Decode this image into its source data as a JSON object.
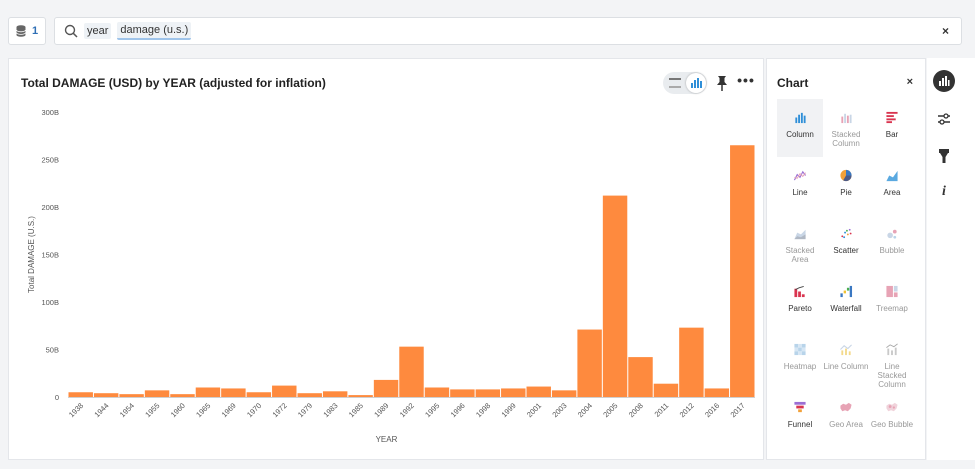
{
  "search": {
    "source_count": "1",
    "tokens": [
      "year",
      "damage (u.s.)"
    ],
    "clear_label": "×"
  },
  "card": {
    "title": "Total DAMAGE (USD) by YEAR (adjusted for inflation)",
    "more_label": "•••"
  },
  "panel": {
    "title": "Chart",
    "close_label": "×",
    "types": [
      {
        "label": "Column",
        "icon": "column-chart-icon",
        "state": "selected"
      },
      {
        "label": "Stacked Column",
        "icon": "stacked-column-chart-icon",
        "state": "disabled"
      },
      {
        "label": "Bar",
        "icon": "bar-chart-icon",
        "state": "enabled"
      },
      {
        "label": "Line",
        "icon": "line-chart-icon",
        "state": "enabled"
      },
      {
        "label": "Pie",
        "icon": "pie-chart-icon",
        "state": "enabled"
      },
      {
        "label": "Area",
        "icon": "area-chart-icon",
        "state": "enabled"
      },
      {
        "label": "Stacked Area",
        "icon": "stacked-area-chart-icon",
        "state": "disabled"
      },
      {
        "label": "Scatter",
        "icon": "scatter-chart-icon",
        "state": "enabled"
      },
      {
        "label": "Bubble",
        "icon": "bubble-chart-icon",
        "state": "disabled"
      },
      {
        "label": "Pareto",
        "icon": "pareto-chart-icon",
        "state": "enabled"
      },
      {
        "label": "Waterfall",
        "icon": "waterfall-chart-icon",
        "state": "enabled"
      },
      {
        "label": "Treemap",
        "icon": "treemap-chart-icon",
        "state": "disabled"
      },
      {
        "label": "Heatmap",
        "icon": "heatmap-chart-icon",
        "state": "disabled"
      },
      {
        "label": "Line Column",
        "icon": "line-column-chart-icon",
        "state": "disabled"
      },
      {
        "label": "Line Stacked Column",
        "icon": "line-stacked-column-chart-icon",
        "state": "disabled"
      },
      {
        "label": "Funnel",
        "icon": "funnel-chart-icon",
        "state": "enabled"
      },
      {
        "label": "Geo Area",
        "icon": "geo-area-chart-icon",
        "state": "disabled"
      },
      {
        "label": "Geo Bubble",
        "icon": "geo-bubble-chart-icon",
        "state": "disabled"
      }
    ]
  },
  "rail": {
    "items": [
      "chart-type-icon",
      "settings-sliders-icon",
      "filter-icon",
      "info-icon"
    ],
    "info_label": "i"
  },
  "colors": {
    "bar": "#fe8a3e",
    "accent": "#2f6fb5",
    "grid": "#e6e6e6"
  },
  "chart_data": {
    "type": "bar",
    "title": "Total DAMAGE (USD) by YEAR (adjusted for inflation)",
    "xlabel": "YEAR",
    "ylabel": "Total DAMAGE (U.S.)",
    "ylim": [
      0,
      300000000000
    ],
    "yticks": [
      0,
      50000000000,
      100000000000,
      150000000000,
      200000000000,
      250000000000,
      300000000000
    ],
    "ytick_labels": [
      "0",
      "50B",
      "100B",
      "150B",
      "200B",
      "250B",
      "300B"
    ],
    "grid": false,
    "legend": "none",
    "categories": [
      "1938",
      "1944",
      "1954",
      "1955",
      "1960",
      "1965",
      "1969",
      "1970",
      "1972",
      "1979",
      "1983",
      "1985",
      "1989",
      "1992",
      "1995",
      "1996",
      "1998",
      "1999",
      "2001",
      "2003",
      "2004",
      "2005",
      "2008",
      "2011",
      "2012",
      "2016",
      "2017"
    ],
    "values": [
      5000000000,
      4000000000,
      3000000000,
      7000000000,
      3000000000,
      10000000000,
      9000000000,
      5000000000,
      12000000000,
      4000000000,
      6000000000,
      2000000000,
      18000000000,
      53000000000,
      10000000000,
      8000000000,
      8000000000,
      9000000000,
      11000000000,
      7000000000,
      71000000000,
      212000000000,
      42000000000,
      14000000000,
      73000000000,
      9000000000,
      265000000000
    ]
  }
}
